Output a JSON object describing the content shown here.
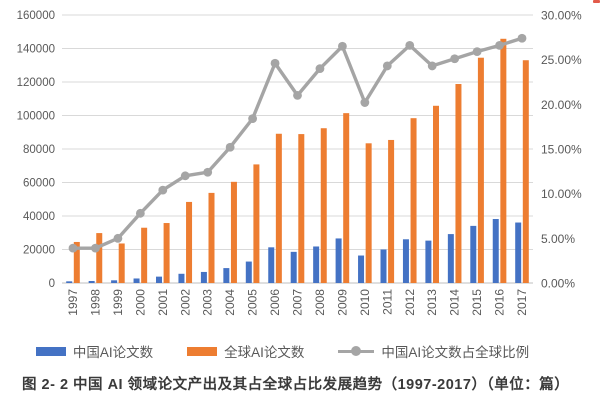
{
  "figure": {
    "caption": "图 2- 2 中国 AI 领域论文产出及其占全球占比发展趋势（1997-2017）（单位：篇）"
  },
  "colors": {
    "china_bar": "#4472C4",
    "global_bar": "#ED7D31",
    "share_line": "#A5A5A5",
    "gridline": "#D9D9D9",
    "axis_line": "#BFBFBF",
    "axis_text": "#595959",
    "caption_text": "#3A3A3A",
    "corner_mark": "#E25A4A",
    "background": "#FFFFFF"
  },
  "chart_data": {
    "type": "combo-bar-line",
    "title": "",
    "xlabel": "",
    "ylabel_left": "",
    "ylabel_right": "",
    "grid": true,
    "legend_position": "bottom",
    "categories": [
      "1997",
      "1998",
      "1999",
      "2000",
      "2001",
      "2002",
      "2003",
      "2004",
      "2005",
      "2006",
      "2007",
      "2008",
      "2009",
      "2010",
      "2011",
      "2012",
      "2013",
      "2014",
      "2015",
      "2016",
      "2017"
    ],
    "series": [
      {
        "name": "中国AI论文数",
        "type": "bar",
        "axis": "left",
        "color": "#4472C4",
        "values": [
          1000,
          1200,
          1600,
          2700,
          3800,
          5500,
          6600,
          8900,
          12800,
          21300,
          18600,
          21800,
          26600,
          16400,
          20000,
          26100,
          25300,
          29200,
          34100,
          38200,
          36100
        ]
      },
      {
        "name": "全球AI论文数",
        "type": "bar",
        "axis": "left",
        "color": "#ED7D31",
        "values": [
          24500,
          29800,
          23600,
          33000,
          35800,
          48400,
          53800,
          60400,
          70800,
          89100,
          88900,
          92400,
          101400,
          83400,
          85400,
          98400,
          105800,
          118800,
          134500,
          145800,
          133000
        ]
      },
      {
        "name": "中国AI论文数占全球比例",
        "type": "line",
        "axis": "right",
        "color": "#A5A5A5",
        "values": [
          3.9,
          3.9,
          5.0,
          7.8,
          10.4,
          12.0,
          12.4,
          15.2,
          18.4,
          24.6,
          21.0,
          24.0,
          26.5,
          20.2,
          24.3,
          26.6,
          24.3,
          25.1,
          25.9,
          26.6,
          27.4
        ]
      }
    ],
    "left_axis": {
      "min": 0,
      "max": 160000,
      "step": 20000,
      "ticks": [
        "0",
        "20000",
        "40000",
        "60000",
        "80000",
        "100000",
        "120000",
        "140000",
        "160000"
      ]
    },
    "right_axis": {
      "min": 0,
      "max": 30,
      "step": 5,
      "ticks": [
        "0.00%",
        "5.00%",
        "10.00%",
        "15.00%",
        "20.00%",
        "25.00%",
        "30.00%"
      ]
    }
  }
}
